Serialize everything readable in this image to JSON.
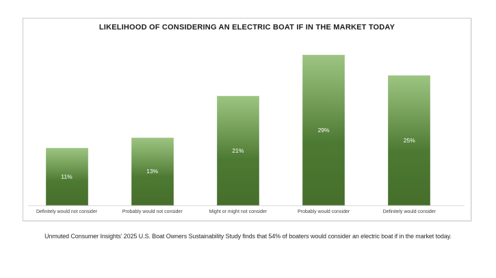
{
  "chart_data": {
    "type": "bar",
    "title": "LIKELIHOOD OF CONSIDERING AN ELECTRIC BOAT IF IN THE MARKET TODAY",
    "categories": [
      "Definitely would not consider",
      "Probably would not consider",
      "Might or might not consider",
      "Probably would consider",
      "Definitely would consider"
    ],
    "values": [
      11,
      13,
      21,
      29,
      25
    ],
    "value_labels": [
      "11%",
      "13%",
      "21%",
      "29%",
      "25%"
    ],
    "xlabel": "",
    "ylabel": "",
    "ylim": [
      0,
      30
    ],
    "grid": false,
    "legend": "none",
    "bar_gradient": {
      "top": "#9dc582",
      "upper_mid": "#76a05a",
      "lower_mid": "#4d7a33",
      "bottom": "#456e2b"
    },
    "value_label_color": "#ffffff"
  },
  "caption": "Unmuted Consumer Insights’ 2025 U.S. Boat Owners Sustainability Study finds that 54% of boaters would consider an electric boat if in the market today.",
  "colors": {
    "background": "#ffffff",
    "panel_border": "#c9c9c9",
    "axis_line": "#d9d9d9",
    "title_text": "#1a1a1a",
    "category_text": "#3d3d3d",
    "caption_text": "#262626"
  }
}
